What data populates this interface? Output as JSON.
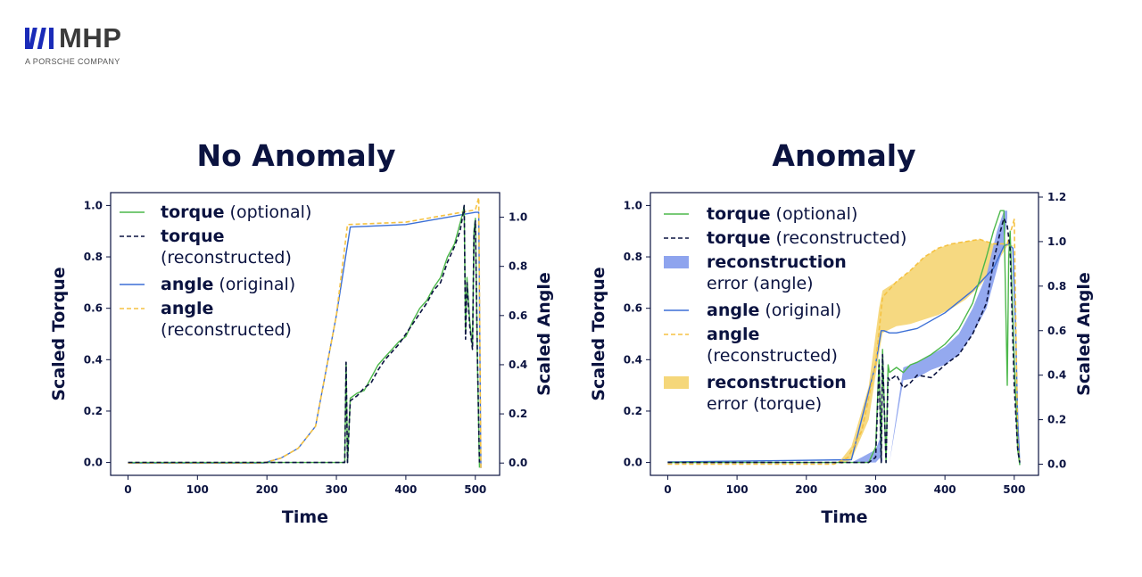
{
  "brand": {
    "name": "MHP",
    "tagline": "A PORSCHE COMPANY",
    "colors": {
      "navy": "#0b1340",
      "blue": "#1a2bb8"
    }
  },
  "colors": {
    "torque": "#4cb84a",
    "torque_recon": "#0b1340",
    "angle": "#3b6fd6",
    "angle_recon": "#f5c242",
    "err_angle": "#8ea4ee",
    "err_torque": "#f5d77a"
  },
  "chart_data": [
    {
      "type": "line",
      "title": "No Anomaly",
      "xlabel": "Time",
      "ylabel": "Scaled Torque",
      "y2label": "Scaled Angle",
      "xlim": [
        -25,
        535
      ],
      "ylim": [
        -0.05,
        1.05
      ],
      "y2lim": [
        -0.05,
        1.1
      ],
      "xticks": [
        "0",
        "100",
        "200",
        "300",
        "400",
        "500"
      ],
      "yticks": [
        "0.0",
        "0.2",
        "0.4",
        "0.6",
        "0.8",
        "1.0"
      ],
      "y2ticks": [
        "0.0",
        "0.2",
        "0.4",
        "0.6",
        "0.8",
        "1.0"
      ],
      "legend": {
        "position": "upper-left",
        "entries": [
          {
            "key": "torque",
            "style": "line",
            "bold": "torque",
            "rest": "(optional)",
            "same_line": true
          },
          {
            "key": "torque_recon",
            "style": "dash",
            "bold": "torque",
            "rest": "(reconstructed)",
            "same_line": false
          },
          {
            "key": "angle",
            "style": "line",
            "bold": "angle",
            "rest": "(original)",
            "same_line": true
          },
          {
            "key": "angle_recon",
            "style": "dash",
            "bold": "angle",
            "rest": "(reconstructed)",
            "same_line": false
          }
        ]
      },
      "series": [
        {
          "name": "angle (original)",
          "axis": "y2",
          "key": "angle",
          "style": "line",
          "x": [
            0,
            195,
            220,
            245,
            270,
            300,
            320,
            400,
            500,
            505,
            508
          ],
          "y": [
            0,
            0,
            0.02,
            0.06,
            0.15,
            0.6,
            0.96,
            0.97,
            1.02,
            1.02,
            -0.02
          ]
        },
        {
          "name": "angle (reconstructed)",
          "axis": "y2",
          "key": "angle_recon",
          "style": "dash",
          "x": [
            0,
            195,
            220,
            245,
            270,
            300,
            316,
            400,
            500,
            505,
            508
          ],
          "y": [
            0,
            0,
            0.02,
            0.06,
            0.15,
            0.6,
            0.97,
            0.98,
            1.03,
            1.08,
            -0.02
          ]
        },
        {
          "name": "torque (optional)",
          "axis": "y1",
          "key": "torque",
          "style": "line",
          "x": [
            0,
            310,
            312,
            314,
            316,
            320,
            330,
            340,
            350,
            360,
            370,
            380,
            390,
            400,
            410,
            420,
            430,
            440,
            450,
            460,
            470,
            478,
            482,
            484,
            486,
            488,
            492,
            496,
            498,
            500,
            503,
            506
          ],
          "y": [
            0,
            0,
            0,
            0.39,
            0.0,
            0.25,
            0.27,
            0.28,
            0.33,
            0.38,
            0.41,
            0.44,
            0.47,
            0.49,
            0.55,
            0.6,
            0.63,
            0.68,
            0.72,
            0.8,
            0.85,
            0.93,
            0.97,
            1.0,
            0.5,
            0.72,
            0.55,
            0.45,
            0.9,
            0.95,
            0.4,
            -0.02
          ]
        },
        {
          "name": "torque (reconstructed)",
          "axis": "y1",
          "key": "torque_recon",
          "style": "dash",
          "x": [
            0,
            310,
            312,
            314,
            316,
            320,
            330,
            340,
            350,
            360,
            370,
            380,
            390,
            400,
            410,
            420,
            430,
            440,
            450,
            460,
            470,
            478,
            482,
            484,
            486,
            488,
            492,
            496,
            498,
            500,
            503,
            506
          ],
          "y": [
            0,
            0,
            0,
            0.39,
            0.0,
            0.24,
            0.26,
            0.29,
            0.31,
            0.36,
            0.4,
            0.43,
            0.46,
            0.5,
            0.54,
            0.58,
            0.62,
            0.67,
            0.7,
            0.78,
            0.84,
            0.9,
            0.96,
            1.0,
            0.48,
            0.7,
            0.53,
            0.44,
            0.88,
            0.94,
            0.42,
            0.0
          ]
        }
      ]
    },
    {
      "type": "line",
      "title": "Anomaly",
      "xlabel": "Time",
      "ylabel": "Scaled Torque",
      "y2label": "Scaled Angle",
      "xlim": [
        -25,
        535
      ],
      "ylim": [
        -0.05,
        1.05
      ],
      "y2lim": [
        -0.05,
        1.22
      ],
      "xticks": [
        "0",
        "100",
        "200",
        "300",
        "400",
        "500"
      ],
      "yticks": [
        "0.0",
        "0.2",
        "0.4",
        "0.6",
        "0.8",
        "1.0"
      ],
      "y2ticks": [
        "0.0",
        "0.2",
        "0.4",
        "0.6",
        "0.8",
        "1.0",
        "1.2"
      ],
      "legend": {
        "position": "upper-left",
        "entries": [
          {
            "key": "torque",
            "style": "line",
            "bold": "torque",
            "rest": "(optional)",
            "same_line": true
          },
          {
            "key": "torque_recon",
            "style": "dash",
            "bold": "torque",
            "rest": "(reconstructed)",
            "same_line": true
          },
          {
            "key": "err_angle",
            "style": "patch",
            "bold": "reconstruction",
            "rest": "error (angle)",
            "same_line": false
          },
          {
            "key": "angle",
            "style": "line",
            "bold": "angle",
            "rest": "(original)",
            "same_line": true
          },
          {
            "key": "angle_recon",
            "style": "dash",
            "bold": "angle",
            "rest": "(reconstructed)",
            "same_line": false
          },
          {
            "key": "err_torque",
            "style": "patch",
            "bold": "reconstruction",
            "rest": "error (torque)",
            "same_line": false
          }
        ]
      },
      "fills": [
        {
          "name": "reconstruction error (torque)",
          "key": "err_torque",
          "axis": "y2",
          "x": [
            250,
            265,
            290,
            305,
            310,
            330,
            350,
            370,
            390,
            410,
            430,
            450,
            470,
            490,
            500
          ],
          "y1": [
            0.0,
            0.02,
            0.2,
            0.5,
            0.59,
            0.62,
            0.63,
            0.65,
            0.67,
            0.7,
            0.74,
            0.8,
            0.88,
            0.98,
            0.98
          ],
          "y2": [
            0.02,
            0.08,
            0.35,
            0.7,
            0.78,
            0.82,
            0.87,
            0.93,
            0.97,
            0.99,
            1.0,
            1.01,
            0.99,
            0.99,
            0.98
          ]
        },
        {
          "name": "reconstruction error (angle)",
          "key": "err_angle",
          "axis": "y1",
          "x": [
            265,
            280,
            300,
            307,
            310,
            320,
            340,
            360,
            380,
            400,
            420,
            440,
            460,
            475,
            485,
            490
          ],
          "y1": [
            0.0,
            0.02,
            0.05,
            0.1,
            0.0,
            0.0,
            0.32,
            0.33,
            0.36,
            0.38,
            0.42,
            0.5,
            0.6,
            0.75,
            0.85,
            0.95
          ],
          "y2": [
            0.0,
            0.0,
            0.0,
            0.02,
            0.0,
            0.0,
            0.37,
            0.39,
            0.42,
            0.45,
            0.5,
            0.6,
            0.73,
            0.9,
            0.98,
            0.98
          ]
        }
      ],
      "series": [
        {
          "name": "angle (original)",
          "axis": "y2",
          "key": "angle",
          "style": "line",
          "x": [
            0,
            265,
            300,
            308,
            312,
            320,
            330,
            360,
            400,
            440,
            470,
            485,
            492,
            498,
            502,
            505,
            508
          ],
          "y": [
            0.01,
            0.02,
            0.45,
            0.6,
            0.6,
            0.59,
            0.59,
            0.61,
            0.68,
            0.78,
            0.88,
            0.98,
            0.99,
            0.97,
            0.6,
            0.2,
            0.0
          ]
        },
        {
          "name": "angle (reconstructed)",
          "axis": "y2",
          "key": "angle_recon",
          "style": "dash",
          "x": [
            0,
            240,
            260,
            280,
            300,
            310,
            330,
            350,
            370,
            390,
            410,
            430,
            450,
            470,
            490,
            500,
            503,
            505,
            508
          ],
          "y": [
            0.0,
            0.0,
            0.03,
            0.15,
            0.45,
            0.75,
            0.82,
            0.87,
            0.93,
            0.97,
            0.99,
            1.0,
            1.01,
            0.99,
            0.99,
            1.1,
            0.5,
            0.1,
            0.0
          ]
        },
        {
          "name": "torque (optional)",
          "axis": "y1",
          "key": "torque",
          "style": "line",
          "x": [
            0,
            290,
            300,
            305,
            308,
            310,
            315,
            318,
            320,
            330,
            340,
            350,
            360,
            380,
            400,
            420,
            440,
            460,
            470,
            480,
            485,
            490,
            492,
            494,
            500,
            505,
            508
          ],
          "y": [
            0,
            0.0,
            0.06,
            0.4,
            0.0,
            0.44,
            0.0,
            0.38,
            0.35,
            0.37,
            0.35,
            0.38,
            0.39,
            0.42,
            0.46,
            0.52,
            0.62,
            0.8,
            0.9,
            0.98,
            0.98,
            0.3,
            0.8,
            0.9,
            0.4,
            0.05,
            -0.01
          ]
        },
        {
          "name": "torque (reconstructed)",
          "axis": "y1",
          "key": "torque_recon",
          "style": "dash",
          "x": [
            0,
            290,
            300,
            305,
            308,
            310,
            315,
            318,
            320,
            330,
            340,
            350,
            360,
            380,
            400,
            420,
            440,
            460,
            470,
            480,
            485,
            490,
            494,
            500,
            505,
            508
          ],
          "y": [
            0,
            0.0,
            0.02,
            0.38,
            0.0,
            0.42,
            0.0,
            0.33,
            0.32,
            0.34,
            0.29,
            0.31,
            0.34,
            0.33,
            0.38,
            0.42,
            0.5,
            0.62,
            0.78,
            0.9,
            0.95,
            0.92,
            0.83,
            0.3,
            0.05,
            0.0
          ]
        }
      ]
    }
  ]
}
